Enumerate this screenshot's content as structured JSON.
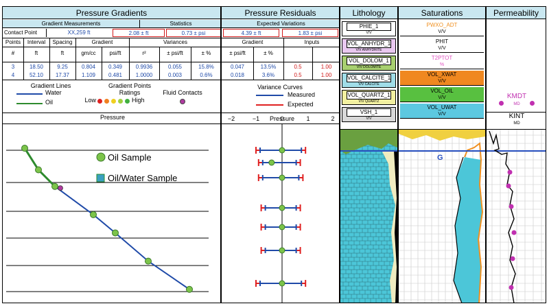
{
  "gradients": {
    "title": "Pressure Gradients",
    "measurements_title": "Gradient Measurements",
    "statistics_title": "Statistics",
    "contact_point_label": "Contact Point",
    "contact_point_value": "XX,259 ft",
    "contact_stat_1": "2.08 ± ft",
    "contact_stat_2": "0.73 ± psi",
    "columns": [
      "Points",
      "Interval",
      "Spacing",
      "Gradient",
      "",
      "Variances",
      "",
      ""
    ],
    "units": [
      "#",
      "ft",
      "ft",
      "gm/cc",
      "psi/ft",
      "r²",
      "± psi/ft",
      "± %"
    ],
    "rows": [
      [
        "3",
        "18.50",
        "9.25",
        "0.804",
        "0.349",
        "0.9936",
        "0.055",
        "15.8%"
      ],
      [
        "4",
        "52.10",
        "17.37",
        "1.109",
        "0.481",
        "1.0000",
        "0.003",
        "0.6%"
      ]
    ]
  },
  "residuals": {
    "title": "Pressure Residuals",
    "expected_title": "Expected Variations",
    "contact_stat_3": "4.39 ± ft",
    "contact_stat_4": "1.83 ± psi",
    "gradient_title": "Gradient",
    "inputs_title": "Inputs",
    "units": [
      "± psi/ft",
      "± %",
      "",
      ""
    ],
    "rows": [
      [
        "0.047",
        "13.5%",
        "0.5",
        "1.00"
      ],
      [
        "0.018",
        "3.6%",
        "0.5",
        "1.00"
      ]
    ]
  },
  "legend": {
    "gradient_lines": "Gradient Lines",
    "water": "Water",
    "oil": "Oil",
    "gradient_points": "Gradient Points",
    "ratings": "Ratings",
    "low": "Low",
    "high": "High",
    "fluid_contacts": "Fluid Contacts",
    "variance_curves": "Variance Curves",
    "measured": "Measured",
    "expected": "Expected",
    "colors": {
      "water": "#1f4aa8",
      "oil": "#2e8b2e",
      "measured": "#1f4aa8",
      "expected": "#e02020",
      "contact": "#b03aa0"
    }
  },
  "pressure_axis_label": "Pressure",
  "residual_axis_label": "Pressure",
  "residual_ticks": [
    "−2",
    "−1",
    "0",
    "1",
    "2"
  ],
  "plot_legend": {
    "oil_sample": "Oil Sample",
    "oil_water_sample": "Oil/Water Sample"
  },
  "chart_data": [
    {
      "type": "scatter",
      "xlabel": "Pressure",
      "series": [
        {
          "name": "Oil Sample",
          "points": [
            [
              0.05,
              0.12
            ],
            [
              0.1,
              0.25
            ],
            [
              0.16,
              0.35
            ],
            [
              0.3,
              0.52
            ],
            [
              0.38,
              0.63
            ],
            [
              0.5,
              0.8
            ],
            [
              0.65,
              0.97
            ]
          ]
        }
      ],
      "contact_point": [
        0.18,
        0.36
      ],
      "legend_entries": [
        "Oil Sample",
        "Oil/Water Sample"
      ]
    },
    {
      "type": "scatter",
      "xlabel": "Pressure",
      "xlim": [
        -2,
        2
      ],
      "xticks": [
        -2,
        -1,
        0,
        1,
        2
      ],
      "series": [
        {
          "name": "Measured",
          "values": [
            0.0,
            -0.4,
            0.0,
            0.0,
            0.0,
            0.0,
            0.0
          ]
        },
        {
          "name": "Expected",
          "ranges": [
            [
              -1.0,
              0.9
            ],
            [
              -0.9,
              0.7
            ],
            [
              -0.9,
              0.8
            ],
            [
              -0.8,
              0.7
            ],
            [
              -0.8,
              0.7
            ],
            [
              -0.8,
              0.7
            ],
            [
              -1.0,
              0.9
            ]
          ]
        }
      ]
    }
  ],
  "tracks": {
    "lithology": {
      "title": "Lithology",
      "curves": [
        {
          "name": "PHIE_1",
          "unit": "V/V"
        },
        {
          "name": "VOL_ANHYDR_1",
          "unit": "V/V ANHYDRITE"
        },
        {
          "name": "VOL_DOLOM_1",
          "unit": "V/V DOLOMITE"
        },
        {
          "name": "VOL_CALCITE_1",
          "unit": "V/V CALCITE"
        },
        {
          "name": "VOL_QUARTZ_1",
          "unit": "V/V QUARTZ"
        },
        {
          "name": "VSH_1",
          "unit": "V/V"
        }
      ]
    },
    "saturations": {
      "title": "Saturations",
      "curves": [
        {
          "name": "PWXO_ADT",
          "unit": "V/V"
        },
        {
          "name": "PHIT",
          "unit": "V/V"
        },
        {
          "name": "T2PTOT",
          "unit": "%"
        },
        {
          "name": "VOL_XWAT",
          "unit": "V/V"
        },
        {
          "name": "VOL_OIL",
          "unit": "V/V"
        },
        {
          "name": "VOL_UWAT",
          "unit": "V/V"
        }
      ],
      "contact_marker": "G"
    },
    "permeability": {
      "title": "Permeability",
      "curves": [
        {
          "name": "KMDT",
          "unit": "MD"
        },
        {
          "name": "KINT",
          "unit": "MD"
        }
      ]
    }
  }
}
